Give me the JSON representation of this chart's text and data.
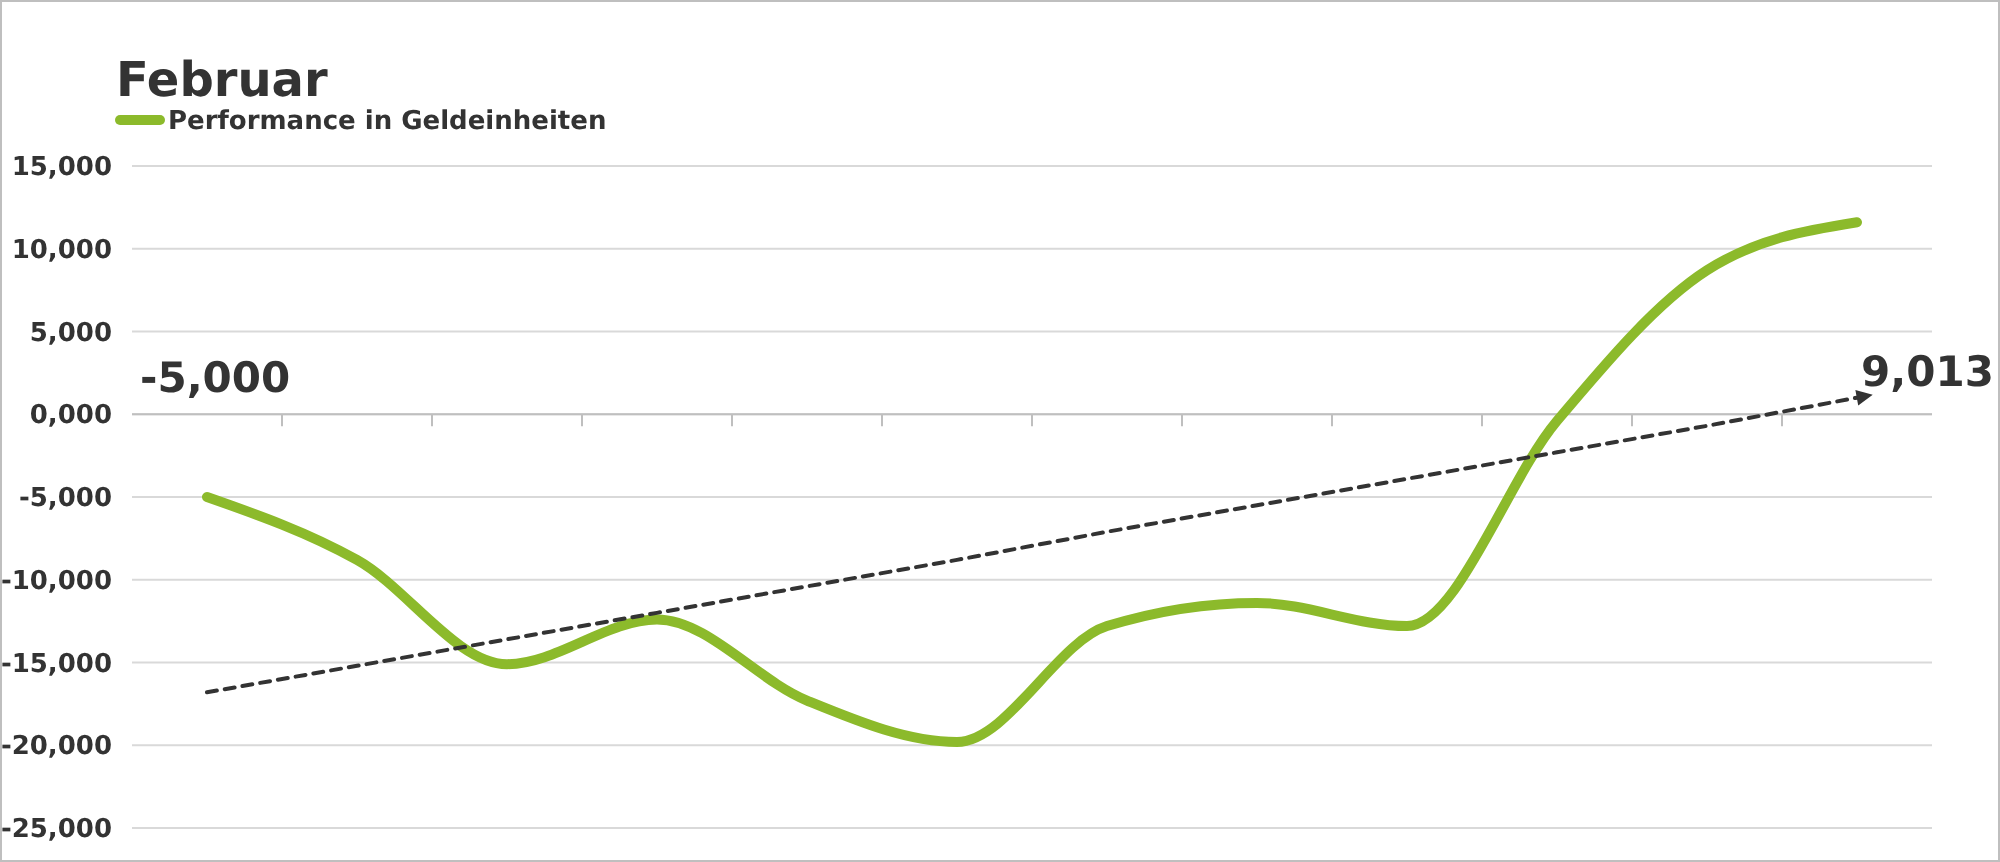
{
  "chart_data": {
    "type": "line",
    "title": "Februar",
    "categories": [
      null,
      null,
      null,
      null,
      null,
      null,
      null,
      null,
      null,
      null,
      null,
      null
    ],
    "series": [
      {
        "name": "Performance in Geldeinheiten",
        "color": "#8cba2b",
        "values": [
          -5000,
          -8800,
          -15100,
          -12400,
          -17300,
          -19800,
          -12800,
          -11400,
          -12800,
          -400,
          8700,
          11600
        ]
      },
      {
        "type": "line",
        "color": "#333333",
        "line_style": "dashed",
        "values": [
          -16800,
          -15200,
          -13600,
          -12000,
          -10400,
          -8800,
          -7100,
          -5500,
          -3900,
          -2300,
          -700,
          1000
        ]
      }
    ],
    "ylim": [
      -25000,
      15000
    ],
    "yticks": [
      {
        "value": -25000,
        "label": "-25,000"
      },
      {
        "value": -20000,
        "label": "-20,000"
      },
      {
        "value": -15000,
        "label": "-15,000"
      },
      {
        "value": -10000,
        "label": "-10,000"
      },
      {
        "value": -5000,
        "label": "-5,000"
      },
      {
        "value": 0,
        "label": "0,000"
      },
      {
        "value": 5000,
        "label": "5,000"
      },
      {
        "value": 10000,
        "label": "10,000"
      },
      {
        "value": 15000,
        "label": "15,000"
      }
    ],
    "grid": "y",
    "legend": "top left",
    "annotations": [
      "-5,000",
      "9,013"
    ]
  }
}
